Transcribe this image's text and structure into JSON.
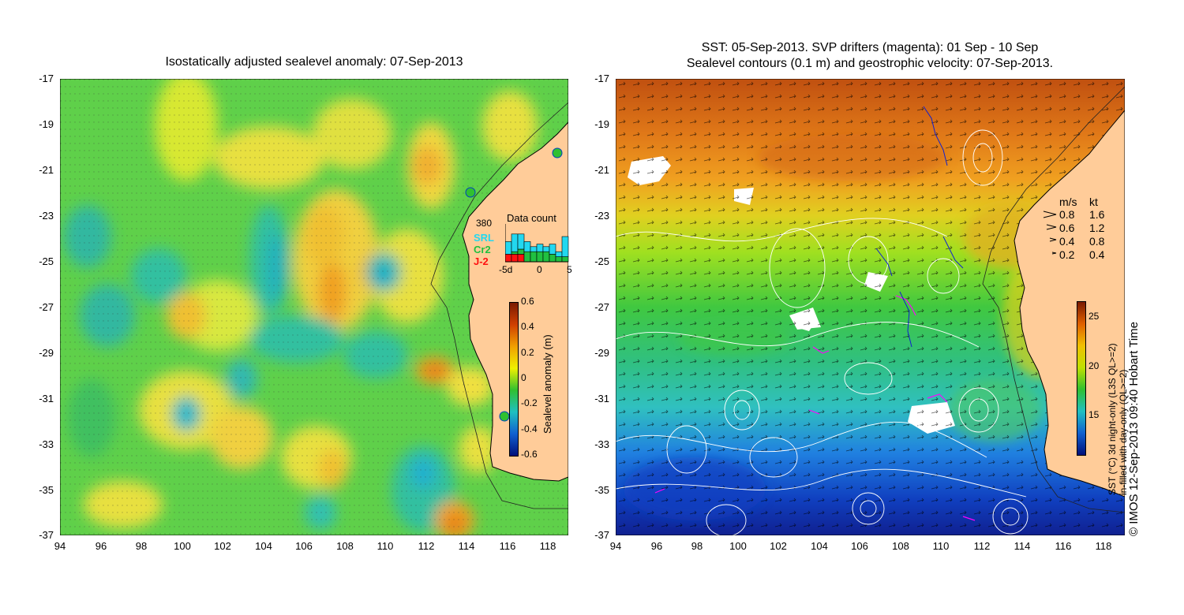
{
  "left_panel": {
    "title": "Isostatically adjusted sealevel anomaly: 07-Sep-2013",
    "x_ticks": [
      "94",
      "96",
      "98",
      "100",
      "102",
      "104",
      "106",
      "108",
      "110",
      "112",
      "114",
      "116",
      "118"
    ],
    "y_ticks": [
      "-17",
      "-19",
      "-21",
      "-23",
      "-25",
      "-27",
      "-29",
      "-31",
      "-33",
      "-35",
      "-37"
    ],
    "colorbar": {
      "label": "Sealevel anomaly (m)",
      "ticks": [
        "0.6",
        "0.4",
        "0.2",
        "0",
        "-0.2",
        "-0.4",
        "-0.6"
      ],
      "colors": [
        "#7a1a00",
        "#d04000",
        "#f0a000",
        "#f0f000",
        "#30c030",
        "#20c0c0",
        "#1060d0",
        "#00107a"
      ]
    },
    "data_count": {
      "title": "Data count",
      "max_label": "380",
      "missions": [
        {
          "name": "SRL",
          "color": "#22d8f0"
        },
        {
          "name": "Cr2",
          "color": "#20c040"
        },
        {
          "name": "J-2",
          "color": "#ff1010"
        }
      ],
      "x_ticks": [
        "-5d",
        "0",
        "5"
      ],
      "srl": [
        5,
        7,
        6,
        4,
        2,
        3,
        2,
        4,
        2,
        8
      ],
      "cr2": [
        0,
        1,
        2,
        4,
        4,
        4,
        4,
        3,
        2,
        2
      ],
      "j2": [
        3,
        3,
        3,
        0,
        0,
        0,
        0,
        0,
        0,
        0
      ]
    }
  },
  "right_panel": {
    "title_line1": "SST: 05-Sep-2013. SVP drifters (magenta): 01 Sep - 10 Sep",
    "title_line2": "Sealevel contours (0.1 m) and geostrophic velocity: 07-Sep-2013.",
    "x_ticks": [
      "94",
      "96",
      "98",
      "100",
      "102",
      "104",
      "106",
      "108",
      "110",
      "112",
      "114",
      "116",
      "118"
    ],
    "y_ticks": [
      "-17",
      "-19",
      "-21",
      "-23",
      "-25",
      "-27",
      "-29",
      "-31",
      "-33",
      "-35",
      "-37"
    ],
    "speed_legend": {
      "header_ms": "m/s",
      "header_kt": "kt",
      "rows": [
        {
          "ms": "0.8",
          "kt": "1.6"
        },
        {
          "ms": "0.6",
          "kt": "1.2"
        },
        {
          "ms": "0.4",
          "kt": "0.8"
        },
        {
          "ms": "0.2",
          "kt": "0.4"
        }
      ]
    },
    "colorbar": {
      "label_line1": "SST (°C) 3d night-only (L3S QL>=2)",
      "label_line2": "in-filled with day-only (QL>=2)",
      "ticks": [
        "25",
        "20",
        "15"
      ],
      "colors": [
        "#7a1a00",
        "#e06000",
        "#f0c000",
        "#c0e000",
        "#30c030",
        "#20c0c0",
        "#1060d0",
        "#00107a"
      ]
    },
    "credit": "© IMOS 12-Sep-2013 09:40 Hobart Time"
  },
  "colors": {
    "land": "#ffcc99",
    "coastline": "#000000",
    "contour": "#ffffff",
    "drifter": "#ff00ff",
    "arrow": "#000000"
  }
}
